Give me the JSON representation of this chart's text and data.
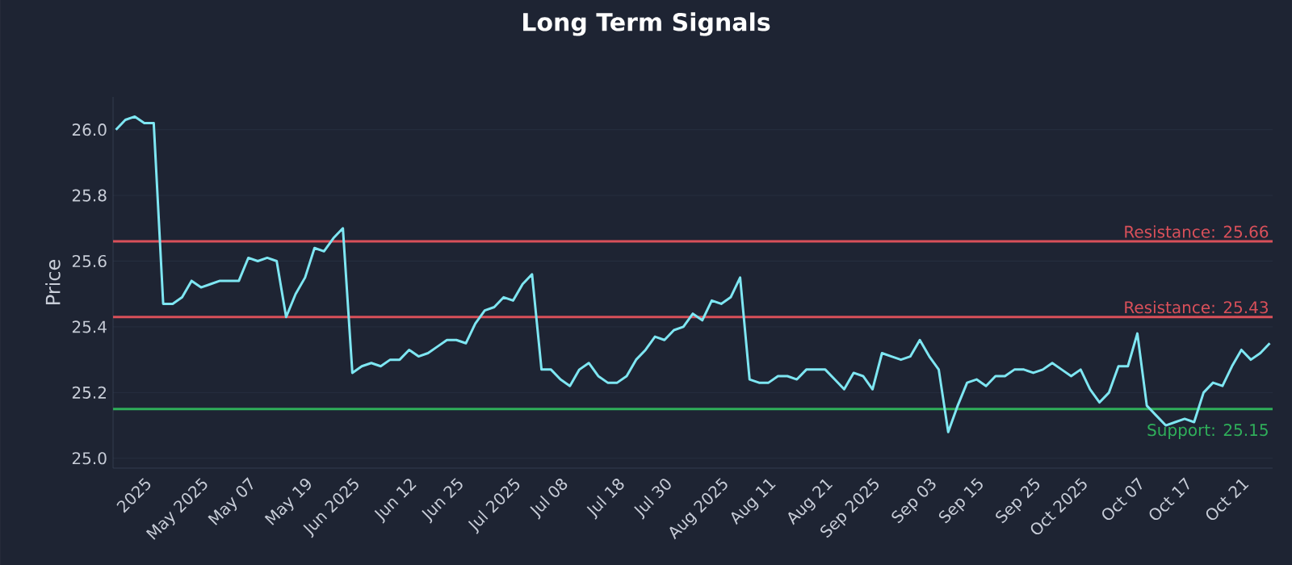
{
  "chart_data": {
    "type": "line",
    "title": "Long Term Signals",
    "ylabel": "Price",
    "categories": [
      null,
      null,
      null,
      "2025",
      null,
      null,
      null,
      null,
      null,
      "May 2025",
      null,
      null,
      null,
      null,
      "May 07",
      null,
      null,
      null,
      null,
      null,
      "May 19",
      null,
      null,
      null,
      null,
      "Jun 2025",
      null,
      null,
      null,
      null,
      null,
      "Jun 12",
      null,
      null,
      null,
      null,
      "Jun 25",
      null,
      null,
      null,
      null,
      null,
      "Jul 2025",
      null,
      null,
      null,
      null,
      "Jul 08",
      null,
      null,
      null,
      null,
      null,
      "Jul 18",
      null,
      null,
      null,
      null,
      "Jul 30",
      null,
      null,
      null,
      null,
      null,
      "Aug 2025",
      null,
      null,
      null,
      null,
      "Aug 11",
      null,
      null,
      null,
      null,
      null,
      "Aug 21",
      null,
      null,
      null,
      null,
      "Sep 2025",
      null,
      null,
      null,
      null,
      null,
      "Sep 03",
      null,
      null,
      null,
      null,
      "Sep 15",
      null,
      null,
      null,
      null,
      null,
      "Sep 25",
      null,
      null,
      null,
      null,
      "Oct 2025",
      null,
      null,
      null,
      null,
      null,
      "Oct 07",
      null,
      null,
      null,
      null,
      "Oct 17",
      null,
      null,
      null,
      null,
      null,
      "Oct 21",
      null,
      null,
      null
    ],
    "series": [
      {
        "color": "#7ee6f2",
        "values": [
          26.0,
          26.03,
          26.04,
          26.02,
          26.02,
          25.47,
          25.47,
          25.49,
          25.54,
          25.52,
          25.53,
          25.54,
          25.54,
          25.54,
          25.61,
          25.6,
          25.61,
          25.6,
          25.43,
          25.5,
          25.55,
          25.64,
          25.63,
          25.67,
          25.7,
          25.26,
          25.28,
          25.29,
          25.28,
          25.3,
          25.3,
          25.33,
          25.31,
          25.32,
          25.34,
          25.36,
          25.36,
          25.35,
          25.41,
          25.45,
          25.46,
          25.49,
          25.48,
          25.53,
          25.56,
          25.27,
          25.27,
          25.24,
          25.22,
          25.27,
          25.29,
          25.25,
          25.23,
          25.23,
          25.25,
          25.3,
          25.33,
          25.37,
          25.36,
          25.39,
          25.4,
          25.44,
          25.42,
          25.48,
          25.47,
          25.49,
          25.55,
          25.24,
          25.23,
          25.23,
          25.25,
          25.25,
          25.24,
          25.27,
          25.27,
          25.27,
          25.24,
          25.21,
          25.26,
          25.25,
          25.21,
          25.32,
          25.31,
          25.3,
          25.31,
          25.36,
          25.31,
          25.27,
          25.08,
          25.16,
          25.23,
          25.24,
          25.22,
          25.25,
          25.25,
          25.27,
          25.27,
          25.26,
          25.27,
          25.29,
          25.27,
          25.25,
          25.27,
          25.21,
          25.17,
          25.2,
          25.28,
          25.28,
          25.38,
          25.16,
          25.13,
          25.1,
          25.11,
          25.12,
          25.11,
          25.2,
          25.23,
          25.22,
          25.28,
          25.33,
          25.3,
          25.32,
          25.35
        ]
      }
    ],
    "ylim": [
      24.97,
      26.1
    ],
    "yticks": [
      {
        "value": 25,
        "label": "25.0"
      },
      {
        "value": 25.2,
        "label": "25.2"
      },
      {
        "value": 25.4,
        "label": "25.4"
      },
      {
        "value": 25.6,
        "label": "25.6"
      },
      {
        "value": 25.8,
        "label": "25.8"
      },
      {
        "value": 26,
        "label": "26.0"
      }
    ],
    "ref_lines": [
      {
        "axis": "y",
        "value": 25.66,
        "label": "Resistance: 25.66",
        "color": "#d9505a"
      },
      {
        "axis": "y",
        "value": 25.43,
        "label": "Resistance: 25.43",
        "color": "#d9505a"
      },
      {
        "axis": "y",
        "value": 25.15,
        "label": "Support: 25.15",
        "color": "#2fae5a"
      }
    ],
    "grid": "y",
    "marker": "none",
    "line_style": "solid"
  }
}
